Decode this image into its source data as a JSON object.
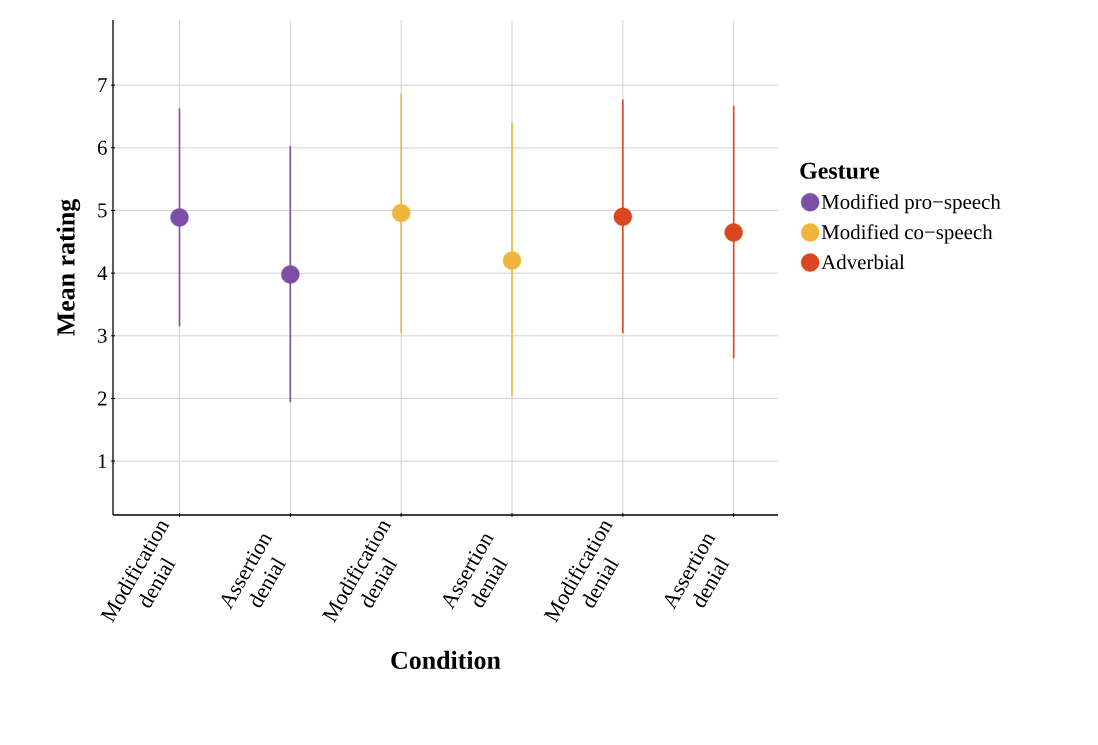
{
  "chart_data": {
    "type": "scatter",
    "xlabel": "Condition",
    "ylabel": "Mean rating",
    "legend_title": "Gesture",
    "categories": [
      "Modification denial",
      "Assertion denial",
      "Modification denial",
      "Assertion denial",
      "Modification denial",
      "Assertion denial"
    ],
    "series": [
      {
        "name": "Modified pro−speech",
        "color": "#7b4fa6",
        "values": [
          4.89,
          3.98,
          null,
          null,
          null,
          null
        ],
        "errors": [
          [
            3.15,
            6.63
          ],
          [
            1.94,
            6.03
          ],
          null,
          null,
          null,
          null
        ]
      },
      {
        "name": "Modified co−speech",
        "color": "#f0b63c",
        "values": [
          null,
          null,
          4.96,
          4.2,
          null,
          null
        ],
        "errors": [
          null,
          null,
          [
            3.04,
            6.87
          ],
          [
            2.04,
            6.4
          ],
          null,
          null
        ]
      },
      {
        "name": "Adverbial",
        "color": "#d9461f",
        "values": [
          null,
          null,
          null,
          null,
          4.9,
          4.65
        ],
        "errors": [
          null,
          null,
          null,
          null,
          [
            3.04,
            6.77
          ],
          [
            2.64,
            6.67
          ]
        ]
      }
    ],
    "ylim": [
      0.14,
      8.04
    ],
    "yticks": [
      1,
      2,
      3,
      4,
      5,
      6,
      7
    ],
    "grid": true,
    "legend": "right",
    "marker": "circle"
  }
}
